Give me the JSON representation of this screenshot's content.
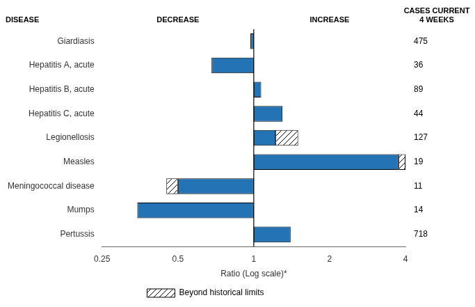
{
  "chart_data": {
    "type": "bar",
    "orientation": "horizontal",
    "log": "x",
    "categories": [
      "Giardiasis",
      "Hepatitis A, acute",
      "Hepatitis B, acute",
      "Hepatitis C, acute",
      "Legionellosis",
      "Measles",
      "Meningococcal disease",
      "Mumps",
      "Pertussis"
    ],
    "series": [
      {
        "color": "#2473b5",
        "values": [
          [
            0.97,
            1.0
          ],
          [
            0.68,
            1.0
          ],
          [
            1.0,
            1.07
          ],
          [
            1.0,
            1.3
          ],
          [
            1.0,
            1.22
          ],
          [
            1.0,
            3.75
          ],
          [
            0.5,
            1.0
          ],
          [
            0.345,
            1.0
          ],
          [
            1.0,
            1.4
          ]
        ]
      },
      {
        "name": "Beyond historical limits",
        "color": "#ffffff",
        "values": [
          null,
          null,
          null,
          null,
          [
            1.22,
            1.5
          ],
          [
            3.75,
            4.0
          ],
          [
            0.45,
            0.5
          ],
          null,
          null
        ]
      }
    ],
    "cases": [
      475,
      36,
      89,
      44,
      127,
      19,
      11,
      14,
      718
    ],
    "annotations": [
      "DISEASE",
      "DECREASE",
      "INCREASE",
      "CASES CURRENT\n4 WEEKS"
    ],
    "xlabel": "Ratio (Log scale)*",
    "xlim": [
      0.25,
      4.0
    ],
    "xticks": [
      0.25,
      0.5,
      1,
      2,
      4
    ],
    "reference_x": 1.0,
    "grid": false,
    "legend": "bottom"
  }
}
